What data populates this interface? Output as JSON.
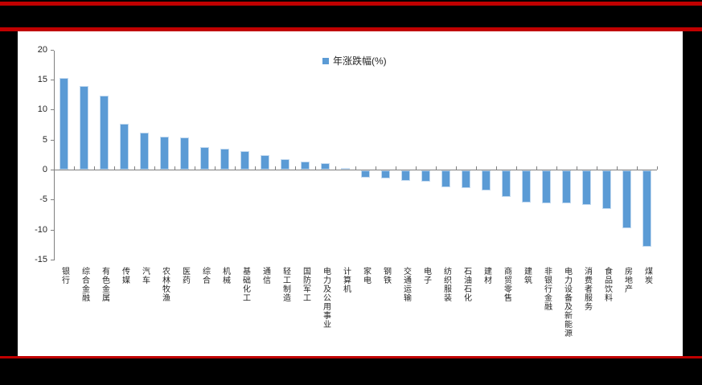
{
  "frame": {
    "accent_red": "#c00000",
    "band_black": "#000000"
  },
  "chart_data": {
    "type": "bar",
    "title": "",
    "legend_label": "年涨跌幅(%)",
    "legend_position": "top-center",
    "grid": false,
    "ylim": [
      -15,
      20
    ],
    "yticks": [
      20,
      15,
      10,
      5,
      0,
      -5,
      -10,
      -15
    ],
    "bar_color": "#5b9bd5",
    "bar_edge_color": "#c3daf0",
    "axis_color": "#808080",
    "text_color": "#262626",
    "categories": [
      "银行",
      "综合金融",
      "有色金属",
      "传媒",
      "汽车",
      "农林牧渔",
      "医药",
      "综合",
      "机械",
      "基础化工",
      "通信",
      "轻工制造",
      "国防军工",
      "电力及公用事业",
      "计算机",
      "家电",
      "钢铁",
      "交通运输",
      "电子",
      "纺织服装",
      "石油石化",
      "建材",
      "商贸零售",
      "建筑",
      "非银行金融",
      "电力设备及新能源",
      "消费者服务",
      "食品饮料",
      "房地产",
      "煤炭"
    ],
    "values": [
      15.3,
      14.0,
      12.3,
      7.6,
      6.1,
      5.5,
      5.4,
      3.8,
      3.5,
      3.1,
      2.4,
      1.7,
      1.3,
      1.1,
      0.3,
      -1.2,
      -1.4,
      -1.8,
      -1.9,
      -2.8,
      -3.0,
      -3.3,
      -4.4,
      -5.4,
      -5.5,
      -5.5,
      -5.7,
      -6.4,
      -9.6,
      -12.8
    ]
  }
}
